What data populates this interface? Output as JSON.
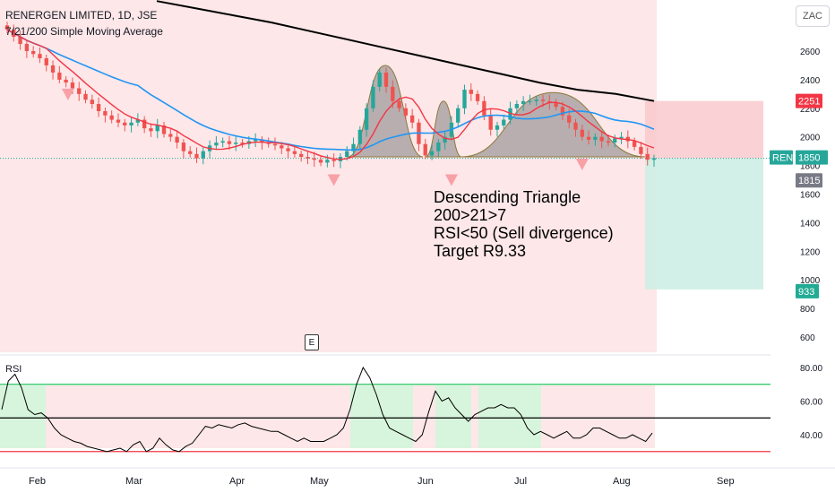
{
  "header": {
    "title": "RENERGEN LIMITED, 1D, JSE",
    "indicator": "7/21/200 Simple Moving Average",
    "currency": "ZAC"
  },
  "annotation_lines": [
    "Descending Triangle",
    "200>21>7",
    "RSI<50 (Sell divergence)",
    "Target R9.33"
  ],
  "event_badge": "E",
  "colors": {
    "up_candle": "#26a69a",
    "down_candle": "#ef5350",
    "sma7": "#f23645",
    "sma21": "#2196f3",
    "sma200": "#000000",
    "background_zone": "#fde7e8",
    "rsi_green_zone": "#d7f5dc",
    "stop_zone": "#f9c9cc",
    "target_zone": "#cdeee4",
    "pattern_fill": "#7f7f7f"
  },
  "chart_data": [
    {
      "type": "candlestick",
      "title": "RENERGEN LIMITED, 1D, JSE",
      "ylim": [
        520,
        2900
      ],
      "y_ticks": [
        "2600",
        "2400",
        "2200",
        "2000",
        "1800",
        "1600",
        "1400",
        "1200",
        "1000",
        "800",
        "600"
      ],
      "x_ticks": [
        "Feb",
        "Mar",
        "Apr",
        "May",
        "Jun",
        "Jul",
        "Aug",
        "Sep"
      ],
      "price_labels": [
        {
          "label": "2251",
          "value": 2251,
          "color": "#f23645"
        },
        {
          "label": "REN",
          "value": 1850,
          "color": "#26a69a"
        },
        {
          "label": "1850",
          "value": 1850,
          "color": "#26a69a"
        },
        {
          "label": "1815",
          "value": 1815,
          "color": "#787b86"
        },
        {
          "label": "933",
          "value": 933,
          "color": "#22ab94"
        }
      ],
      "closes": [
        2750,
        2700,
        2650,
        2600,
        2580,
        2550,
        2500,
        2450,
        2400,
        2380,
        2340,
        2300,
        2260,
        2230,
        2180,
        2150,
        2120,
        2100,
        2080,
        2100,
        2120,
        2060,
        2040,
        2080,
        2020,
        2000,
        1960,
        1900,
        1880,
        1850,
        1900,
        1940,
        1960,
        1970,
        1950,
        1960,
        1950,
        1970,
        1980,
        1960,
        1950,
        1940,
        1920,
        1900,
        1880,
        1860,
        1850,
        1840,
        1820,
        1840,
        1830,
        1860,
        1900,
        1950,
        2050,
        2200,
        2350,
        2450,
        2350,
        2250,
        2200,
        2150,
        2100,
        1950,
        1870,
        1900,
        1960,
        2000,
        2100,
        2200,
        2330,
        2300,
        2250,
        2150,
        2050,
        2080,
        2120,
        2200,
        2230,
        2250,
        2250,
        2260,
        2250,
        2240,
        2210,
        2150,
        2100,
        2050,
        2000,
        1980,
        2000,
        1970,
        1960,
        1990,
        2000,
        1970,
        1930,
        1880,
        1840,
        1850
      ],
      "sma_series": [
        {
          "name": "SMA 7",
          "period": 7
        },
        {
          "name": "SMA 21",
          "period": 21
        }
      ],
      "sma200_values": [
        2950,
        2900,
        2850,
        2800,
        2740,
        2680,
        2620,
        2560,
        2500,
        2440,
        2380,
        2330,
        2300,
        2251
      ],
      "markers_down": [
        {
          "index": 10,
          "price": 2300
        },
        {
          "index": 50,
          "price": 1700
        },
        {
          "index": 68,
          "price": 1700
        },
        {
          "index": 88,
          "price": 1810
        }
      ],
      "zones": {
        "stop": [
          1850,
          2251
        ],
        "target": [
          933,
          1850
        ]
      }
    },
    {
      "type": "line",
      "title": "RSI",
      "ylim": [
        25,
        88
      ],
      "y_ticks": [
        "80.00",
        "60.00",
        "40.00"
      ],
      "levels": {
        "upper": 70,
        "middle": 50,
        "lower": 30
      },
      "values": [
        55,
        72,
        76,
        68,
        55,
        52,
        53,
        50,
        44,
        40,
        38,
        36,
        35,
        33,
        32,
        31,
        30,
        31,
        32,
        30,
        34,
        36,
        30,
        32,
        38,
        34,
        31,
        30,
        33,
        35,
        40,
        45,
        44,
        46,
        45,
        44,
        46,
        47,
        45,
        44,
        43,
        42,
        42,
        40,
        38,
        36,
        38,
        36,
        36,
        36,
        38,
        40,
        44,
        55,
        70,
        80,
        74,
        64,
        52,
        44,
        42,
        40,
        38,
        36,
        40,
        54,
        66,
        60,
        62,
        56,
        52,
        48,
        52,
        54,
        56,
        56,
        58,
        56,
        56,
        52,
        44,
        40,
        42,
        40,
        38,
        40,
        42,
        38,
        38,
        40,
        44,
        44,
        42,
        40,
        38,
        38,
        40,
        38,
        36,
        41
      ]
    }
  ]
}
